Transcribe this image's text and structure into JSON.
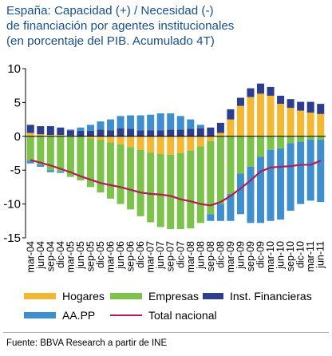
{
  "title_lines": [
    "España: Capacidad (+) / Necesidad (-)",
    "de financiación por agentes institucionales",
    "(en porcentaje del PIB. Acumulado 4T)"
  ],
  "source": "Fuente: BBVA Research a partir de INE",
  "colors": {
    "hogares": "#f2b833",
    "empresas": "#7dc24a",
    "inst": "#2e3e8f",
    "aapp": "#3f8fcf",
    "total": "#b01d58",
    "title": "#1a4f8a"
  },
  "chart_data": {
    "type": "bar",
    "stacked": true,
    "ylim": [
      -15,
      10
    ],
    "yticks": [
      10,
      5,
      0,
      -5,
      -10,
      -15
    ],
    "grid": false,
    "legend_position": "bottom",
    "x": [
      "mar-04",
      "jun-04",
      "sep-04",
      "dic-04",
      "mar-05",
      "jun-05",
      "sep-05",
      "dic-05",
      "mar-06",
      "jun-06",
      "sep-06",
      "dic-06",
      "mar-07",
      "jun-07",
      "sep-07",
      "dic-07",
      "mar-08",
      "jun-08",
      "sep-08",
      "dic-08",
      "mar-09",
      "jun-09",
      "sep-09",
      "dic-09",
      "mar-10",
      "jun-10",
      "sep-10",
      "dic-10",
      "mar-11",
      "jun-11"
    ],
    "series": [
      {
        "name": "Hogares",
        "key": "hogares",
        "kind": "bar",
        "values": [
          0.5,
          0.3,
          0.2,
          0.2,
          0.1,
          0.0,
          -0.3,
          -0.5,
          -0.9,
          -1.2,
          -1.6,
          -2.0,
          -2.4,
          -2.6,
          -2.7,
          -2.5,
          -2.1,
          -1.5,
          -0.7,
          0.5,
          2.5,
          4.5,
          5.8,
          6.3,
          6.0,
          4.8,
          4.2,
          3.8,
          3.5,
          3.3
        ]
      },
      {
        "name": "Empresas",
        "key": "empresas",
        "kind": "bar",
        "values": [
          -3.6,
          -4.2,
          -5.0,
          -5.2,
          -6.0,
          -6.5,
          -7.2,
          -7.8,
          -8.3,
          -8.8,
          -9.2,
          -9.8,
          -10.3,
          -10.8,
          -11.0,
          -11.2,
          -11.5,
          -11.3,
          -10.8,
          -10.0,
          -8.5,
          -5.5,
          -4.5,
          -3.0,
          -2.0,
          -1.8,
          -1.0,
          -0.8,
          -0.5,
          -0.5
        ]
      },
      {
        "name": "Inst. Financieras",
        "key": "inst",
        "kind": "bar",
        "values": [
          1.2,
          1.2,
          1.3,
          1.1,
          0.8,
          0.8,
          0.8,
          1.0,
          0.9,
          1.2,
          1.1,
          0.9,
          0.9,
          0.9,
          1.0,
          1.0,
          1.1,
          1.2,
          1.3,
          1.5,
          1.5,
          1.2,
          1.3,
          1.5,
          1.3,
          1.2,
          1.3,
          1.3,
          1.6,
          1.5
        ]
      },
      {
        "name": "AA.PP",
        "key": "aapp",
        "kind": "bar",
        "values": [
          -0.4,
          -0.3,
          -0.3,
          -0.2,
          0.1,
          0.5,
          0.9,
          1.2,
          1.6,
          1.8,
          2.0,
          2.2,
          2.3,
          2.5,
          2.4,
          2.0,
          1.4,
          0.5,
          -1.0,
          -2.5,
          -4.0,
          -6.0,
          -8.3,
          -9.8,
          -10.5,
          -10.5,
          -10.0,
          -9.2,
          -9.0,
          -9.2
        ]
      },
      {
        "name": "Total nacional",
        "key": "total",
        "kind": "line",
        "values": [
          -3.5,
          -3.9,
          -4.3,
          -4.8,
          -5.3,
          -5.9,
          -6.4,
          -6.9,
          -7.2,
          -7.5,
          -7.9,
          -8.3,
          -8.5,
          -8.6,
          -8.8,
          -9.3,
          -9.6,
          -10.0,
          -10.2,
          -9.7,
          -8.8,
          -7.7,
          -6.5,
          -5.2,
          -4.6,
          -4.5,
          -4.4,
          -4.2,
          -4.2,
          -3.6
        ]
      }
    ]
  }
}
